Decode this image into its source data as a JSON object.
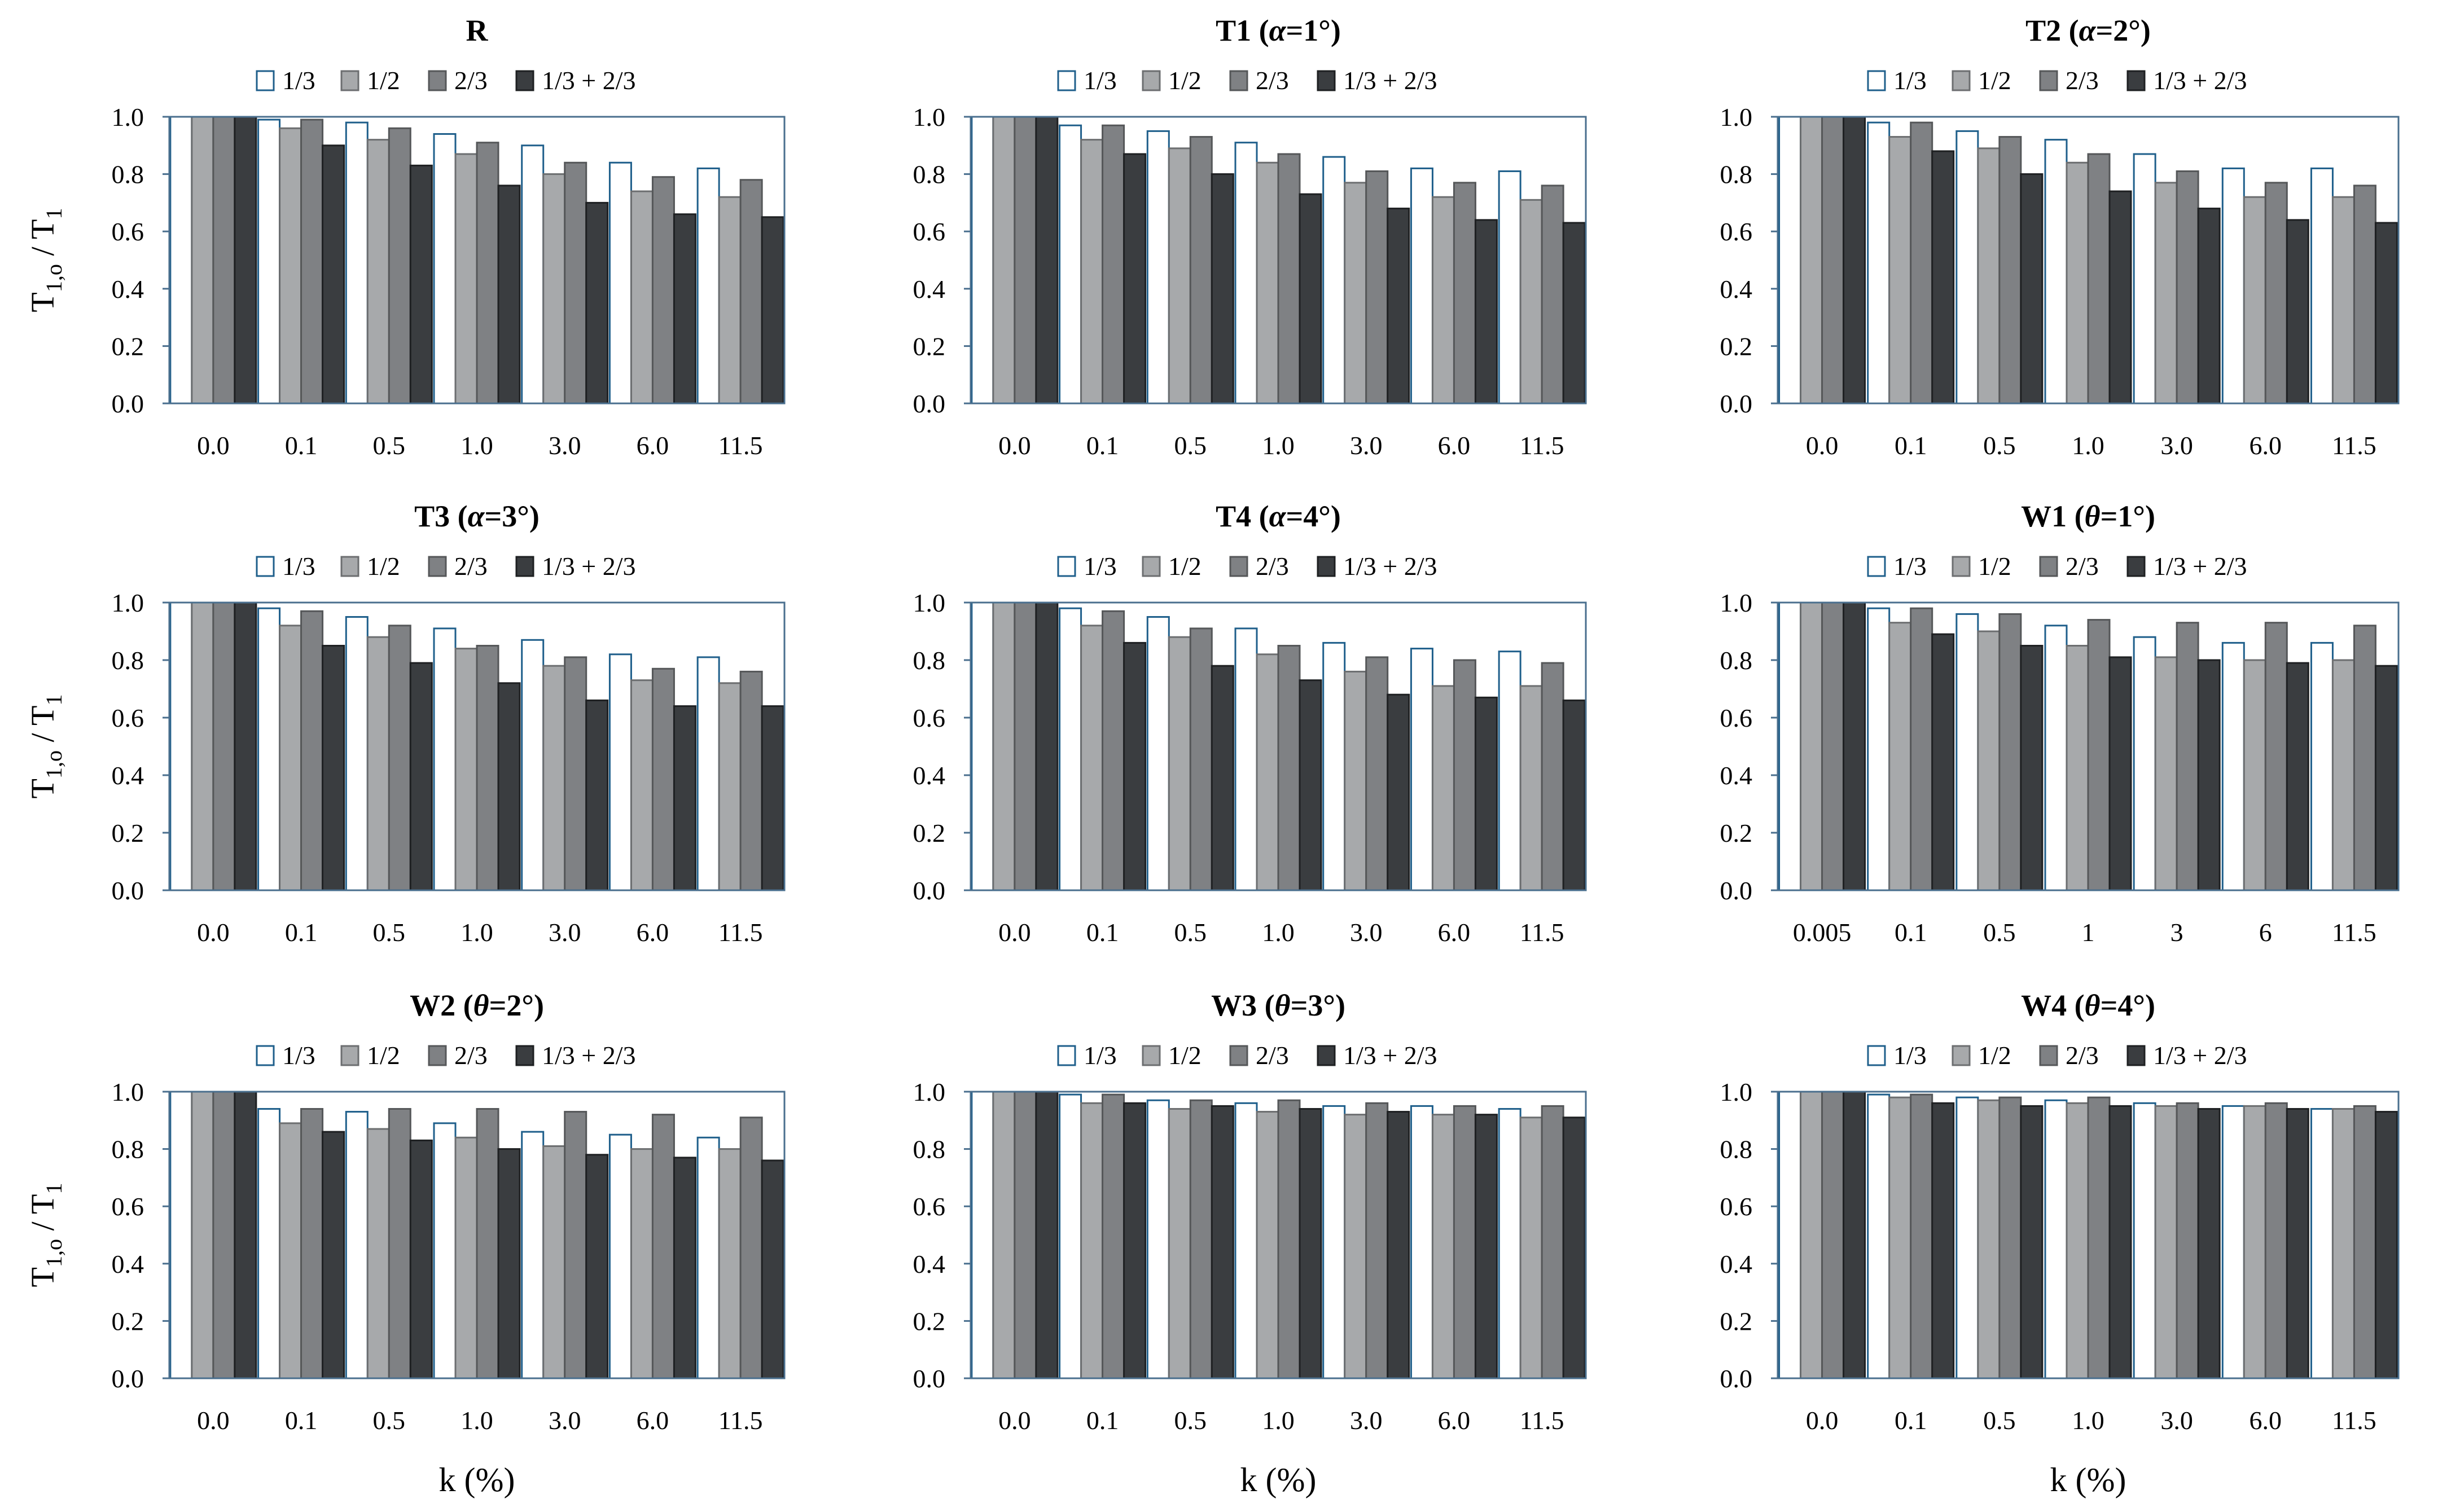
{
  "colors": {
    "s1_fill": "#ffffff",
    "s1_stroke": "#1f5f8b",
    "s2_fill": "#a7a9ab",
    "s3_fill": "#7f8184",
    "s4_fill": "#3a3d40",
    "axis": "#4a6f8e"
  },
  "legend": [
    "1/3",
    "1/2",
    "2/3",
    "1/3 + 2/3"
  ],
  "ylabel": "T1,o / T1",
  "ylabel_parts": {
    "main": "T",
    "sub1": "1,o",
    "sep": " / T",
    "sub2": "1"
  },
  "xlabel": "k (%)",
  "chart_data": [
    {
      "type": "bar",
      "title": "R",
      "title_parts": {
        "main": "R",
        "greek": "",
        "rest": ""
      },
      "categories": [
        "0.0",
        "0.1",
        "0.5",
        "1.0",
        "3.0",
        "6.0",
        "11.5"
      ],
      "ylim": [
        0,
        1
      ],
      "yticks": [
        "0.0",
        "0.2",
        "0.4",
        "0.6",
        "0.8",
        "1.0"
      ],
      "series": [
        {
          "name": "1/3",
          "values": [
            1.0,
            0.99,
            0.98,
            0.94,
            0.9,
            0.84,
            0.82
          ]
        },
        {
          "name": "1/2",
          "values": [
            1.0,
            0.96,
            0.92,
            0.87,
            0.8,
            0.74,
            0.72
          ]
        },
        {
          "name": "2/3",
          "values": [
            1.0,
            0.99,
            0.96,
            0.91,
            0.84,
            0.79,
            0.78
          ]
        },
        {
          "name": "1/3 + 2/3",
          "values": [
            1.0,
            0.9,
            0.83,
            0.76,
            0.7,
            0.66,
            0.65
          ]
        }
      ]
    },
    {
      "type": "bar",
      "title": "T1 (α=1°)",
      "title_parts": {
        "main": "T1 (",
        "greek": "α",
        "rest": "=1°)"
      },
      "categories": [
        "0.0",
        "0.1",
        "0.5",
        "1.0",
        "3.0",
        "6.0",
        "11.5"
      ],
      "ylim": [
        0,
        1
      ],
      "yticks": [
        "0.0",
        "0.2",
        "0.4",
        "0.6",
        "0.8",
        "1.0"
      ],
      "series": [
        {
          "name": "1/3",
          "values": [
            1.0,
            0.97,
            0.95,
            0.91,
            0.86,
            0.82,
            0.81
          ]
        },
        {
          "name": "1/2",
          "values": [
            1.0,
            0.92,
            0.89,
            0.84,
            0.77,
            0.72,
            0.71
          ]
        },
        {
          "name": "2/3",
          "values": [
            1.0,
            0.97,
            0.93,
            0.87,
            0.81,
            0.77,
            0.76
          ]
        },
        {
          "name": "1/3 + 2/3",
          "values": [
            1.0,
            0.87,
            0.8,
            0.73,
            0.68,
            0.64,
            0.63
          ]
        }
      ]
    },
    {
      "type": "bar",
      "title": "T2 (α=2°)",
      "title_parts": {
        "main": "T2 (",
        "greek": "α",
        "rest": "=2°)"
      },
      "categories": [
        "0.0",
        "0.1",
        "0.5",
        "1.0",
        "3.0",
        "6.0",
        "11.5"
      ],
      "ylim": [
        0,
        1
      ],
      "yticks": [
        "0.0",
        "0.2",
        "0.4",
        "0.6",
        "0.8",
        "1.0"
      ],
      "series": [
        {
          "name": "1/3",
          "values": [
            1.0,
            0.98,
            0.95,
            0.92,
            0.87,
            0.82,
            0.82
          ]
        },
        {
          "name": "1/2",
          "values": [
            1.0,
            0.93,
            0.89,
            0.84,
            0.77,
            0.72,
            0.72
          ]
        },
        {
          "name": "2/3",
          "values": [
            1.0,
            0.98,
            0.93,
            0.87,
            0.81,
            0.77,
            0.76
          ]
        },
        {
          "name": "1/3 + 2/3",
          "values": [
            1.0,
            0.88,
            0.8,
            0.74,
            0.68,
            0.64,
            0.63
          ]
        }
      ]
    },
    {
      "type": "bar",
      "title": "T3 (α=3°)",
      "title_parts": {
        "main": "T3 (",
        "greek": "α",
        "rest": "=3°)"
      },
      "categories": [
        "0.0",
        "0.1",
        "0.5",
        "1.0",
        "3.0",
        "6.0",
        "11.5"
      ],
      "ylim": [
        0,
        1
      ],
      "yticks": [
        "0.0",
        "0.2",
        "0.4",
        "0.6",
        "0.8",
        "1.0"
      ],
      "series": [
        {
          "name": "1/3",
          "values": [
            1.0,
            0.98,
            0.95,
            0.91,
            0.87,
            0.82,
            0.81
          ]
        },
        {
          "name": "1/2",
          "values": [
            1.0,
            0.92,
            0.88,
            0.84,
            0.78,
            0.73,
            0.72
          ]
        },
        {
          "name": "2/3",
          "values": [
            1.0,
            0.97,
            0.92,
            0.85,
            0.81,
            0.77,
            0.76
          ]
        },
        {
          "name": "1/3 + 2/3",
          "values": [
            1.0,
            0.85,
            0.79,
            0.72,
            0.66,
            0.64,
            0.64
          ]
        }
      ]
    },
    {
      "type": "bar",
      "title": "T4 (α=4°)",
      "title_parts": {
        "main": "T4 (",
        "greek": "α",
        "rest": "=4°)"
      },
      "categories": [
        "0.0",
        "0.1",
        "0.5",
        "1.0",
        "3.0",
        "6.0",
        "11.5"
      ],
      "ylim": [
        0,
        1
      ],
      "yticks": [
        "0.0",
        "0.2",
        "0.4",
        "0.6",
        "0.8",
        "1.0"
      ],
      "series": [
        {
          "name": "1/3",
          "values": [
            1.0,
            0.98,
            0.95,
            0.91,
            0.86,
            0.84,
            0.83
          ]
        },
        {
          "name": "1/2",
          "values": [
            1.0,
            0.92,
            0.88,
            0.82,
            0.76,
            0.71,
            0.71
          ]
        },
        {
          "name": "2/3",
          "values": [
            1.0,
            0.97,
            0.91,
            0.85,
            0.81,
            0.8,
            0.79
          ]
        },
        {
          "name": "1/3 + 2/3",
          "values": [
            1.0,
            0.86,
            0.78,
            0.73,
            0.68,
            0.67,
            0.66
          ]
        }
      ]
    },
    {
      "type": "bar",
      "title": "W1 (θ=1°)",
      "title_parts": {
        "main": "W1 (",
        "greek": "θ",
        "rest": "=1°)"
      },
      "categories": [
        "0.005",
        "0.1",
        "0.5",
        "1",
        "3",
        "6",
        "11.5"
      ],
      "ylim": [
        0,
        1
      ],
      "yticks": [
        "0.0",
        "0.2",
        "0.4",
        "0.6",
        "0.8",
        "1.0"
      ],
      "series": [
        {
          "name": "1/3",
          "values": [
            1.0,
            0.98,
            0.96,
            0.92,
            0.88,
            0.86,
            0.86
          ]
        },
        {
          "name": "1/2",
          "values": [
            1.0,
            0.93,
            0.9,
            0.85,
            0.81,
            0.8,
            0.8
          ]
        },
        {
          "name": "2/3",
          "values": [
            1.0,
            0.98,
            0.96,
            0.94,
            0.93,
            0.93,
            0.92
          ]
        },
        {
          "name": "1/3 + 2/3",
          "values": [
            1.0,
            0.89,
            0.85,
            0.81,
            0.8,
            0.79,
            0.78
          ]
        }
      ]
    },
    {
      "type": "bar",
      "title": "W2 (θ=2°)",
      "title_parts": {
        "main": "W2 (",
        "greek": "θ",
        "rest": "=2°)"
      },
      "categories": [
        "0.0",
        "0.1",
        "0.5",
        "1.0",
        "3.0",
        "6.0",
        "11.5"
      ],
      "ylim": [
        0,
        1
      ],
      "yticks": [
        "0.0",
        "0.2",
        "0.4",
        "0.6",
        "0.8",
        "1.0"
      ],
      "series": [
        {
          "name": "1/3",
          "values": [
            1.0,
            0.94,
            0.93,
            0.89,
            0.86,
            0.85,
            0.84
          ]
        },
        {
          "name": "1/2",
          "values": [
            1.0,
            0.89,
            0.87,
            0.84,
            0.81,
            0.8,
            0.8
          ]
        },
        {
          "name": "2/3",
          "values": [
            1.0,
            0.94,
            0.94,
            0.94,
            0.93,
            0.92,
            0.91
          ]
        },
        {
          "name": "1/3 + 2/3",
          "values": [
            1.0,
            0.86,
            0.83,
            0.8,
            0.78,
            0.77,
            0.76
          ]
        }
      ]
    },
    {
      "type": "bar",
      "title": "W3 (θ=3°)",
      "title_parts": {
        "main": "W3 (",
        "greek": "θ",
        "rest": "=3°)"
      },
      "categories": [
        "0.0",
        "0.1",
        "0.5",
        "1.0",
        "3.0",
        "6.0",
        "11.5"
      ],
      "ylim": [
        0,
        1
      ],
      "yticks": [
        "0.0",
        "0.2",
        "0.4",
        "0.6",
        "0.8",
        "1.0"
      ],
      "series": [
        {
          "name": "1/3",
          "values": [
            1.0,
            0.99,
            0.97,
            0.96,
            0.95,
            0.95,
            0.94
          ]
        },
        {
          "name": "1/2",
          "values": [
            1.0,
            0.96,
            0.94,
            0.93,
            0.92,
            0.92,
            0.91
          ]
        },
        {
          "name": "2/3",
          "values": [
            1.0,
            0.99,
            0.97,
            0.97,
            0.96,
            0.95,
            0.95
          ]
        },
        {
          "name": "1/3 + 2/3",
          "values": [
            1.0,
            0.96,
            0.95,
            0.94,
            0.93,
            0.92,
            0.91
          ]
        }
      ]
    },
    {
      "type": "bar",
      "title": "W4 (θ=4°)",
      "title_parts": {
        "main": "W4 (",
        "greek": "θ",
        "rest": "=4°)"
      },
      "categories": [
        "0.0",
        "0.1",
        "0.5",
        "1.0",
        "3.0",
        "6.0",
        "11.5"
      ],
      "ylim": [
        0,
        1
      ],
      "yticks": [
        "0.0",
        "0.2",
        "0.4",
        "0.6",
        "0.8",
        "1.0"
      ],
      "series": [
        {
          "name": "1/3",
          "values": [
            1.0,
            0.99,
            0.98,
            0.97,
            0.96,
            0.95,
            0.94
          ]
        },
        {
          "name": "1/2",
          "values": [
            1.0,
            0.98,
            0.97,
            0.96,
            0.95,
            0.95,
            0.94
          ]
        },
        {
          "name": "2/3",
          "values": [
            1.0,
            0.99,
            0.98,
            0.98,
            0.96,
            0.96,
            0.95
          ]
        },
        {
          "name": "1/3 + 2/3",
          "values": [
            1.0,
            0.96,
            0.95,
            0.95,
            0.94,
            0.94,
            0.93
          ]
        }
      ]
    }
  ]
}
